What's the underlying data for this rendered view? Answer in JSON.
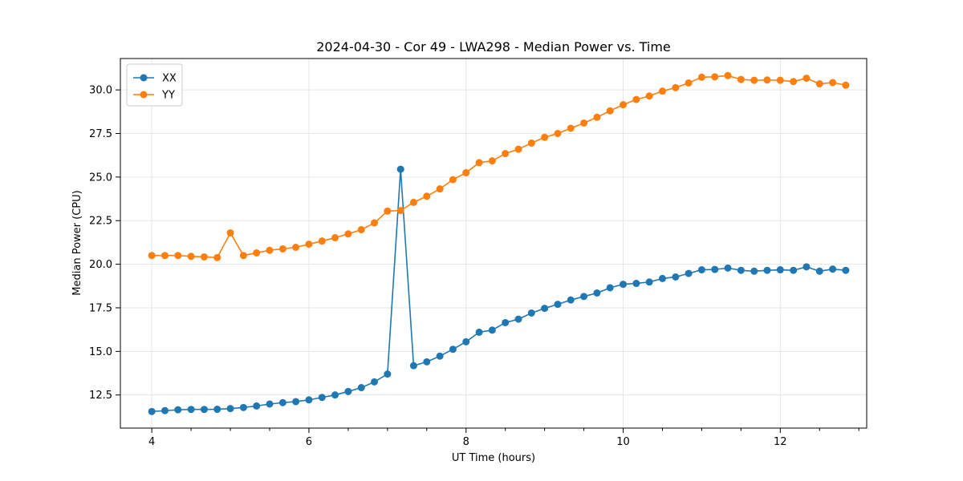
{
  "chart_data": {
    "type": "line",
    "title": "2024-04-30 - Cor 49 - LWA298 - Median Power vs. Time",
    "xlabel": "UT Time (hours)",
    "ylabel": "Median Power (CPU)",
    "xlim": [
      3.6,
      13.1
    ],
    "ylim": [
      10.6,
      31.8
    ],
    "xticks": [
      4,
      6,
      8,
      10,
      12
    ],
    "xtick_labels": [
      "4",
      "6",
      "8",
      "10",
      "12"
    ],
    "xminor_step": 0.5,
    "yticks": [
      12.5,
      15.0,
      17.5,
      20.0,
      22.5,
      25.0,
      27.5,
      30.0
    ],
    "ytick_labels": [
      "12.5",
      "15.0",
      "17.5",
      "20.0",
      "22.5",
      "25.0",
      "27.5",
      "30.0"
    ],
    "grid": true,
    "legend_position": "top-left",
    "x": [
      4.0,
      4.167,
      4.333,
      4.5,
      4.667,
      4.833,
      5.0,
      5.167,
      5.333,
      5.5,
      5.667,
      5.833,
      6.0,
      6.167,
      6.333,
      6.5,
      6.667,
      6.833,
      7.0,
      7.167,
      7.333,
      7.5,
      7.667,
      7.833,
      8.0,
      8.167,
      8.333,
      8.5,
      8.667,
      8.833,
      9.0,
      9.167,
      9.333,
      9.5,
      9.667,
      9.833,
      10.0,
      10.167,
      10.333,
      10.5,
      10.667,
      10.833,
      11.0,
      11.167,
      11.333,
      11.5,
      11.667,
      11.833,
      12.0,
      12.167,
      12.333,
      12.5,
      12.667,
      12.833
    ],
    "series": [
      {
        "name": "XX",
        "color": "#1f77b4",
        "values": [
          11.55,
          11.6,
          11.65,
          11.67,
          11.67,
          11.68,
          11.72,
          11.78,
          11.87,
          11.98,
          12.06,
          12.12,
          12.22,
          12.36,
          12.5,
          12.7,
          12.92,
          13.25,
          13.7,
          25.45,
          14.18,
          14.4,
          14.73,
          15.12,
          15.55,
          16.1,
          16.22,
          16.65,
          16.85,
          17.2,
          17.47,
          17.7,
          17.95,
          18.15,
          18.35,
          18.65,
          18.85,
          18.9,
          18.98,
          19.18,
          19.27,
          19.47,
          19.68,
          19.7,
          19.78,
          19.65,
          19.6,
          19.65,
          19.68,
          19.65,
          19.85,
          19.6,
          19.72,
          19.65
        ]
      },
      {
        "name": "YY",
        "color": "#ff7f0e",
        "values": [
          20.5,
          20.5,
          20.5,
          20.45,
          20.42,
          20.38,
          21.8,
          20.5,
          20.65,
          20.8,
          20.88,
          20.97,
          21.15,
          21.33,
          21.52,
          21.74,
          21.98,
          22.37,
          23.05,
          23.08,
          23.55,
          23.9,
          24.32,
          24.85,
          25.25,
          25.83,
          25.93,
          26.35,
          26.6,
          26.95,
          27.28,
          27.5,
          27.8,
          28.1,
          28.43,
          28.8,
          29.15,
          29.45,
          29.65,
          29.93,
          30.13,
          30.4,
          30.73,
          30.75,
          30.82,
          30.6,
          30.55,
          30.57,
          30.55,
          30.48,
          30.67,
          30.35,
          30.42,
          30.27
        ]
      }
    ]
  }
}
